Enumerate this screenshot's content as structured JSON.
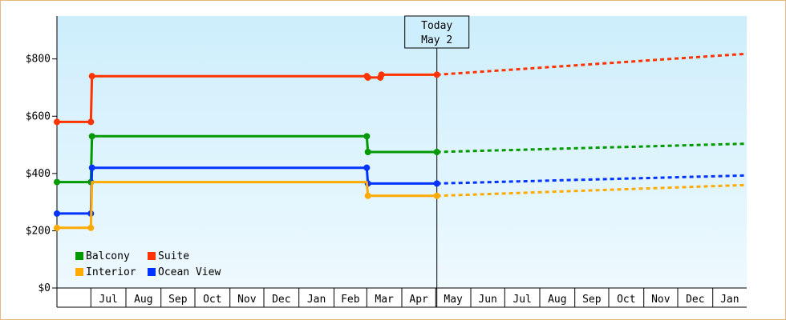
{
  "chart_data": {
    "type": "line",
    "title": "",
    "xlabel": "",
    "ylabel": "",
    "ylim": [
      0,
      950
    ],
    "y_ticks": [
      {
        "value": 0,
        "label": "$0"
      },
      {
        "value": 200,
        "label": "$200"
      },
      {
        "value": 400,
        "label": "$400"
      },
      {
        "value": 600,
        "label": "$600"
      },
      {
        "value": 800,
        "label": "$800"
      }
    ],
    "x_month_labels": [
      "Jul",
      "Aug",
      "Sep",
      "Oct",
      "Nov",
      "Dec",
      "Jan",
      "Feb",
      "Mar",
      "Apr",
      "May",
      "Jun",
      "Jul",
      "Aug",
      "Sep",
      "Oct",
      "Nov",
      "Dec",
      "Jan"
    ],
    "x_range": [
      "2023-06-01",
      "2025-01-31"
    ],
    "today": {
      "date": "2024-05-02",
      "line1": "Today",
      "line2": "May 2"
    },
    "grid": false,
    "legend_position": "bottom-left",
    "series": [
      {
        "name": "Suite",
        "color": "#ff3300",
        "history": [
          [
            "2023-06-01",
            580
          ],
          [
            "2023-07-01",
            580
          ],
          [
            "2023-07-02",
            740
          ],
          [
            "2024-03-01",
            740
          ],
          [
            "2024-03-02",
            735
          ],
          [
            "2024-03-13",
            735
          ],
          [
            "2024-03-14",
            745
          ],
          [
            "2024-05-02",
            745
          ]
        ],
        "markers": [
          [
            "2023-06-01",
            580
          ],
          [
            "2023-07-01",
            580
          ],
          [
            "2023-07-02",
            740
          ],
          [
            "2024-03-01",
            740
          ],
          [
            "2024-03-02",
            735
          ],
          [
            "2024-03-13",
            735
          ],
          [
            "2024-03-14",
            745
          ],
          [
            "2024-05-02",
            745
          ]
        ],
        "forecast": [
          [
            "2024-05-02",
            745
          ],
          [
            "2025-01-31",
            818
          ]
        ]
      },
      {
        "name": "Balcony",
        "color": "#009900",
        "history": [
          [
            "2023-06-01",
            370
          ],
          [
            "2023-07-01",
            370
          ],
          [
            "2023-07-02",
            530
          ],
          [
            "2024-03-01",
            530
          ],
          [
            "2024-03-02",
            475
          ],
          [
            "2024-05-02",
            475
          ]
        ],
        "markers": [
          [
            "2023-06-01",
            370
          ],
          [
            "2023-07-01",
            370
          ],
          [
            "2023-07-02",
            530
          ],
          [
            "2024-03-01",
            530
          ],
          [
            "2024-03-02",
            475
          ],
          [
            "2024-05-02",
            475
          ]
        ],
        "forecast": [
          [
            "2024-05-02",
            475
          ],
          [
            "2025-01-31",
            504
          ]
        ]
      },
      {
        "name": "Ocean View",
        "color": "#0033ff",
        "history": [
          [
            "2023-06-01",
            260
          ],
          [
            "2023-07-01",
            260
          ],
          [
            "2023-07-02",
            420
          ],
          [
            "2024-03-01",
            420
          ],
          [
            "2024-03-02",
            365
          ],
          [
            "2024-05-02",
            365
          ]
        ],
        "markers": [
          [
            "2023-06-01",
            260
          ],
          [
            "2023-07-01",
            260
          ],
          [
            "2023-07-02",
            420
          ],
          [
            "2024-03-01",
            420
          ],
          [
            "2024-03-02",
            365
          ],
          [
            "2024-05-02",
            365
          ]
        ],
        "forecast": [
          [
            "2024-05-02",
            365
          ],
          [
            "2025-01-31",
            393
          ]
        ]
      },
      {
        "name": "Interior",
        "color": "#ffaa00",
        "history": [
          [
            "2023-06-01",
            210
          ],
          [
            "2023-07-01",
            210
          ],
          [
            "2023-07-02",
            370
          ],
          [
            "2024-03-01",
            370
          ],
          [
            "2024-03-02",
            322
          ],
          [
            "2024-05-02",
            322
          ]
        ],
        "markers": [
          [
            "2023-06-01",
            210
          ],
          [
            "2023-07-01",
            210
          ],
          [
            "2024-03-02",
            322
          ],
          [
            "2024-05-02",
            322
          ]
        ],
        "forecast": [
          [
            "2024-05-02",
            322
          ],
          [
            "2025-01-31",
            360
          ]
        ]
      }
    ],
    "legend": [
      {
        "name": "Balcony",
        "color": "#009900"
      },
      {
        "name": "Suite",
        "color": "#ff3300"
      },
      {
        "name": "Interior",
        "color": "#ffaa00"
      },
      {
        "name": "Ocean View",
        "color": "#0033ff"
      }
    ]
  }
}
